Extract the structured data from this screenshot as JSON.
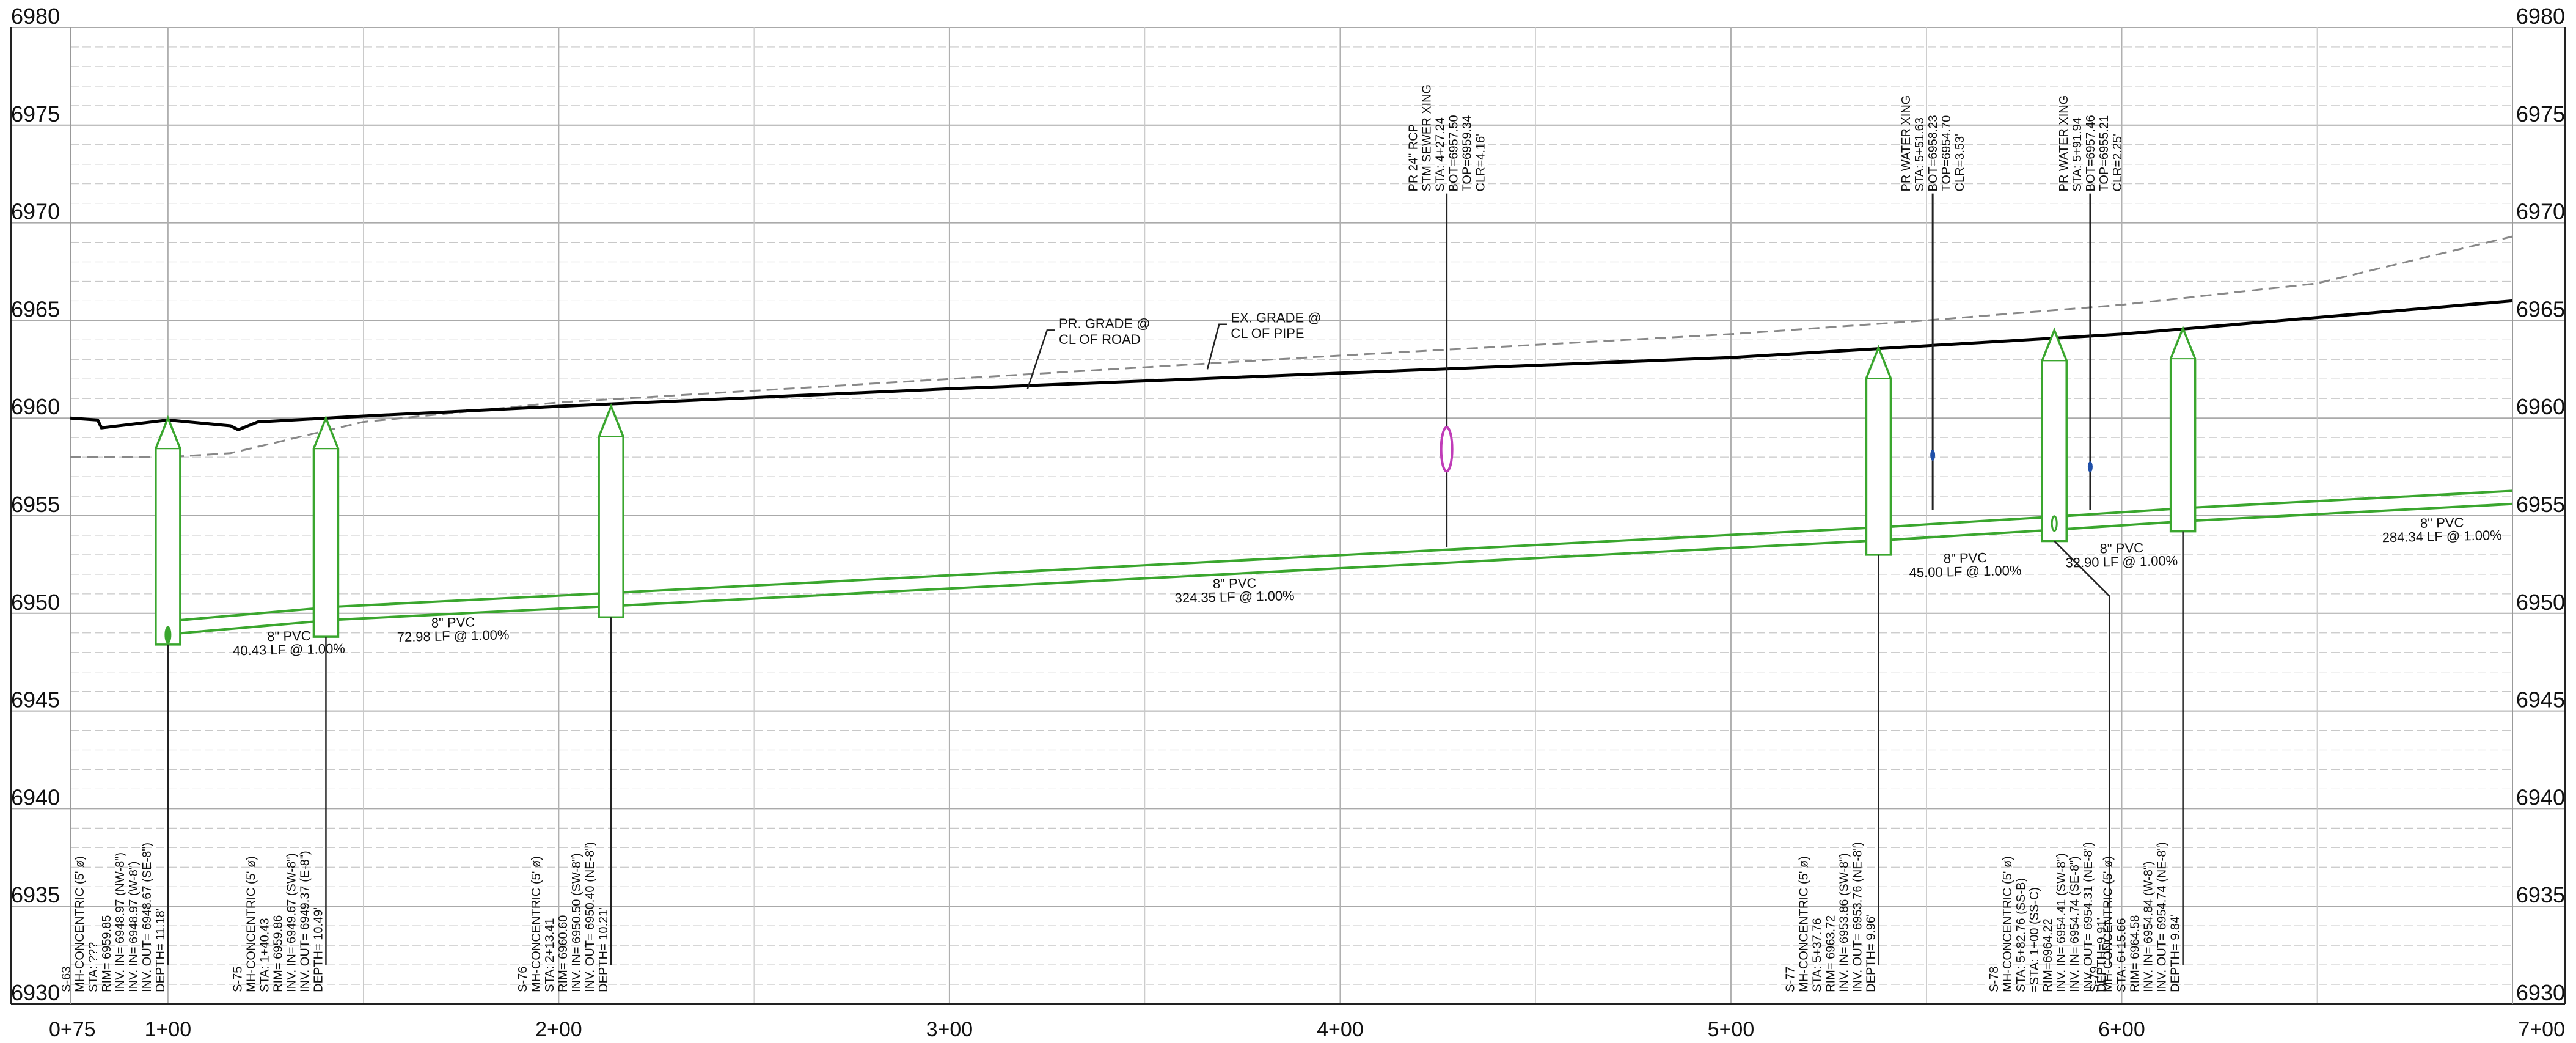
{
  "chart_data": {
    "type": "profile",
    "x_range": [
      "0+75",
      "7+00"
    ],
    "y_range": [
      6930,
      6980
    ],
    "x_ticks": [
      "0+75",
      "1+00",
      "2+00",
      "3+00",
      "4+00",
      "5+00",
      "6+00",
      "7+00"
    ],
    "y_ticks": [
      "6930",
      "6935",
      "6940",
      "6945",
      "6950",
      "6955",
      "6960",
      "6965",
      "6970",
      "6975",
      "6980"
    ],
    "grid": true,
    "proposed_grade": [
      [
        75,
        6960.0
      ],
      [
        82,
        6959.9
      ],
      [
        83,
        6959.5
      ],
      [
        100,
        6959.9
      ],
      [
        116,
        6959.6
      ],
      [
        118,
        6959.4
      ],
      [
        123,
        6959.8
      ],
      [
        150,
        6960.1
      ],
      [
        200,
        6960.6
      ],
      [
        300,
        6961.5
      ],
      [
        400,
        6962.3
      ],
      [
        500,
        6963.1
      ],
      [
        600,
        6964.3
      ],
      [
        700,
        6966.0
      ]
    ],
    "existing_grade": [
      [
        75,
        6958.0
      ],
      [
        100,
        6958.0
      ],
      [
        116,
        6958.2
      ],
      [
        150,
        6959.8
      ],
      [
        200,
        6960.8
      ],
      [
        300,
        6962.0
      ],
      [
        400,
        6963.2
      ],
      [
        500,
        6964.3
      ],
      [
        550,
        6965.0
      ],
      [
        600,
        6965.8
      ],
      [
        650,
        6966.9
      ],
      [
        700,
        6969.3
      ]
    ],
    "pipe_invert": [
      [
        102.5,
        6948.97
      ],
      [
        142.9,
        6949.67
      ],
      [
        215.9,
        6950.4
      ],
      [
        540.2,
        6953.76
      ],
      [
        585.2,
        6954.31
      ],
      [
        618.1,
        6954.74
      ],
      [
        700,
        6955.6
      ]
    ],
    "manholes": [
      {
        "id": "S-63",
        "sta": 100,
        "rim": 6960.0,
        "bottom": 6948.4,
        "ecc": false,
        "lines": [
          "S-63",
          "MH-CONCENTRIC (5' ø)",
          "STA: ???",
          "RIM= 6959.85",
          "INV. IN= 6948.97 (NW-8\")",
          "INV. IN= 6948.97 (W-8\")",
          "INV. OUT= 6948.67 (SE-8\")",
          "DEPTH= 11.18'"
        ]
      },
      {
        "id": "S-75",
        "sta": 140.43,
        "rim": 6960.0,
        "bottom": 6948.8,
        "ecc": false,
        "lines": [
          "S-75",
          "MH-CONCENTRIC (5' ø)",
          "STA: 1+40.43",
          "RIM= 6959.86",
          "INV. IN= 6949.67 (SW-8\")",
          "INV. OUT= 6949.37 (E-8\")",
          "DEPTH= 10.49'"
        ]
      },
      {
        "id": "S-76",
        "sta": 213.41,
        "rim": 6960.6,
        "bottom": 6949.8,
        "ecc": false,
        "lines": [
          "S-76",
          "MH-CONCENTRIC (5' ø)",
          "STA: 2+13.41",
          "RIM= 6960.60",
          "INV. IN= 6950.50 (SW-8\")",
          "INV. OUT= 6950.40 (NE-8\")",
          "DEPTH= 10.21'"
        ]
      },
      {
        "id": "S-77",
        "sta": 537.76,
        "rim": 6963.6,
        "bottom": 6953.0,
        "ecc": false,
        "lines": [
          "S-77",
          "MH-CONCENTRIC (5' ø)",
          "STA: 5+37.76",
          "RIM= 6963.72",
          "INV. IN= 6953.86 (SW-8\")",
          "INV. OUT= 6953.76 (NE-8\")",
          "DEPTH= 9.96'"
        ]
      },
      {
        "id": "S-78",
        "sta": 582.76,
        "rim": 6964.5,
        "bottom": 6953.7,
        "ecc": true,
        "lines": [
          "S-78",
          "MH-CONCENTRIC (5' ø)",
          "STA: 5+82.76 (SS-B)",
          "=STA: 1+00 (SS-C)",
          "RIM=6964.22",
          "INV. IN= 6954.41 (SW-8\")",
          "INV. IN= 6954.74 (SE-8\")",
          "INV. OUT= 6954.31 (NE-8\")",
          "DEPTH=9.91'"
        ]
      },
      {
        "id": "S-79",
        "sta": 615.66,
        "rim": 6964.6,
        "bottom": 6954.2,
        "ecc": false,
        "lines": [
          "S-79",
          "MH-CONCENTRIC (5' ø)",
          "STA: 6+15.66",
          "RIM= 6964.58",
          "INV. IN= 6954.84 (W-8\")",
          "INV. OUT= 6954.74 (NE-8\")",
          "DEPTH= 9.84'"
        ]
      }
    ],
    "pipe_labels": [
      {
        "l1": "8\" PVC",
        "l2": "40.43 LF @ 1.00%",
        "sta": 131,
        "elev": 6948.6
      },
      {
        "l1": "8\" PVC",
        "l2": "72.98 LF @ 1.00%",
        "sta": 173,
        "elev": 6949.3
      },
      {
        "l1": "8\" PVC",
        "l2": "324.35 LF @ 1.00%",
        "sta": 373,
        "elev": 6951.3
      },
      {
        "l1": "8\" PVC",
        "l2": "45.00 LF @ 1.00%",
        "sta": 560,
        "elev": 6952.6
      },
      {
        "l1": "8\" PVC",
        "l2": "32.90 LF @ 1.00%",
        "sta": 600,
        "elev": 6953.1
      },
      {
        "l1": "8\" PVC",
        "l2": "284.34 LF @ 1.00%",
        "sta": 682,
        "elev": 6954.4
      }
    ],
    "crossings": [
      {
        "sta": 427.24,
        "lines": [
          "PR 24\" RCP",
          "STM SEWER XING",
          "STA: 4+27.24",
          "BOT=6957.50",
          "TOP=6959.34",
          "CLR=4.16'"
        ],
        "type": "storm"
      },
      {
        "sta": 551.63,
        "lines": [
          "PR WATER XING",
          "STA: 5+51.63",
          "BOT=6958.23",
          "TOP=6954.70",
          "CLR=3.53'"
        ],
        "type": "water"
      },
      {
        "sta": 591.94,
        "lines": [
          "PR WATER XING",
          "STA: 5+91.94",
          "BOT=6957.46",
          "TOP=6955.21",
          "CLR=2.25'"
        ],
        "type": "water"
      }
    ],
    "grade_labels": [
      {
        "l1": "PR. GRADE @",
        "l2": "CL OF ROAD"
      },
      {
        "l1": "EX. GRADE @",
        "l2": "CL OF PIPE"
      }
    ]
  },
  "colors": {
    "grid_major": "#aaaaaa",
    "grid_minor": "#c8c8c8",
    "pipe": "#3aa62e",
    "grade": "#000000",
    "existing": "#888888",
    "storm": "#c03cb8",
    "water": "#1f4fa8"
  }
}
